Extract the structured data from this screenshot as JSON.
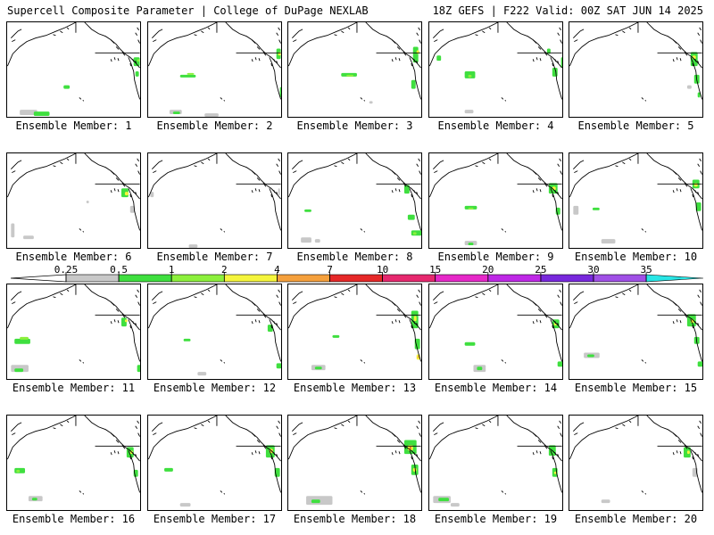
{
  "header": {
    "left": "Supercell Composite Parameter | College of DuPage NEXLAB",
    "right": "18Z GEFS | F222 Valid: 00Z SAT JUN 14 2025"
  },
  "members": [
    {
      "label": "Ensemble Member: 1"
    },
    {
      "label": "Ensemble Member: 2"
    },
    {
      "label": "Ensemble Member: 3"
    },
    {
      "label": "Ensemble Member: 4"
    },
    {
      "label": "Ensemble Member: 5"
    },
    {
      "label": "Ensemble Member: 6"
    },
    {
      "label": "Ensemble Member: 7"
    },
    {
      "label": "Ensemble Member: 8"
    },
    {
      "label": "Ensemble Member: 9"
    },
    {
      "label": "Ensemble Member: 10"
    },
    {
      "label": "Ensemble Member: 11"
    },
    {
      "label": "Ensemble Member: 12"
    },
    {
      "label": "Ensemble Member: 13"
    },
    {
      "label": "Ensemble Member: 14"
    },
    {
      "label": "Ensemble Member: 15"
    },
    {
      "label": "Ensemble Member: 16"
    },
    {
      "label": "Ensemble Member: 17"
    },
    {
      "label": "Ensemble Member: 18"
    },
    {
      "label": "Ensemble Member: 19"
    },
    {
      "label": "Ensemble Member: 20"
    }
  ],
  "legend": {
    "thresholds": [
      "0.25",
      "0.5",
      "1",
      "2",
      "4",
      "7",
      "10",
      "15",
      "20",
      "25",
      "30",
      "35"
    ],
    "colors": [
      "#c8c8c8",
      "#3fdf3f",
      "#8cf03c",
      "#f5f53c",
      "#f5a03c",
      "#e62828",
      "#e6286e",
      "#e628c8",
      "#be28e6",
      "#7828dc",
      "#a050e6",
      "#28e6e6"
    ]
  }
}
